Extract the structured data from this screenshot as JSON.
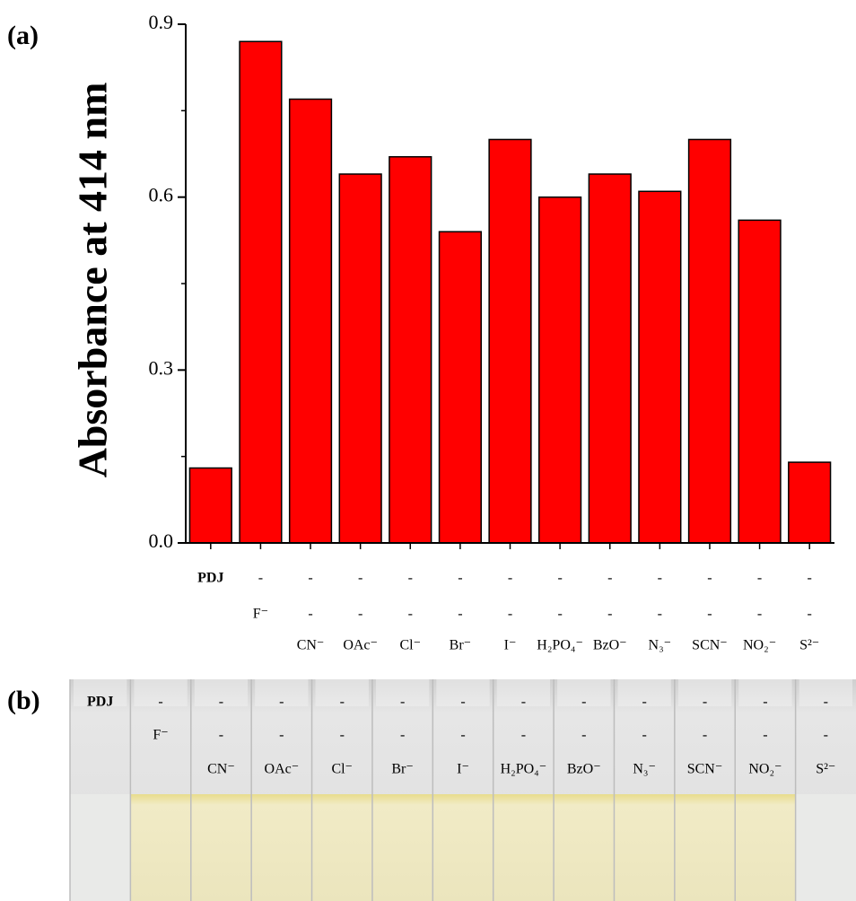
{
  "chart_data": {
    "type": "bar",
    "panel_label": "(a)",
    "y_label": "Absorbance at 414 nm",
    "values": [
      0.13,
      0.87,
      0.77,
      0.64,
      0.67,
      0.54,
      0.7,
      0.6,
      0.64,
      0.61,
      0.7,
      0.56,
      0.14
    ],
    "color": "#ff0000",
    "ylim": [
      0,
      0.9
    ],
    "yticks": [
      {
        "value": 0,
        "label": "0.0"
      },
      0.3,
      0.6,
      0.9
    ],
    "yminor": [
      0.15,
      0.45,
      0.75
    ],
    "x_label_rows": [
      [
        "PDJ",
        "-",
        "-",
        "-",
        "-",
        "-",
        "-",
        "-",
        "-",
        "-",
        "-",
        "-",
        "-"
      ],
      [
        null,
        "F⁻",
        "-",
        "-",
        "-",
        "-",
        "-",
        "-",
        "-",
        "-",
        "-",
        "-",
        "-"
      ],
      [
        null,
        null,
        "CN⁻",
        "OAc⁻",
        "Cl⁻",
        "Br⁻",
        "I⁻",
        "H₂PO₄⁻",
        "BzO⁻",
        "N₃⁻",
        "SCN⁻",
        "NO₂⁻",
        "S²⁻"
      ]
    ]
  },
  "photo": {
    "panel_label": "(b)",
    "rows": [
      [
        "PDJ",
        "-",
        "-",
        "-",
        "-",
        "-",
        "-",
        "-",
        "-",
        "-",
        "-",
        "-",
        "-"
      ],
      [
        null,
        "F⁻",
        "-",
        "-",
        "-",
        "-",
        "-",
        "-",
        "-",
        "-",
        "-",
        "-",
        "-"
      ],
      [
        null,
        null,
        "CN⁻",
        "OAc⁻",
        "Cl⁻",
        "Br⁻",
        "I⁻",
        "H₂PO₄⁻",
        "BzO⁻",
        "N₃⁻",
        "SCN⁻",
        "NO₂⁻",
        "S²⁻"
      ]
    ]
  }
}
